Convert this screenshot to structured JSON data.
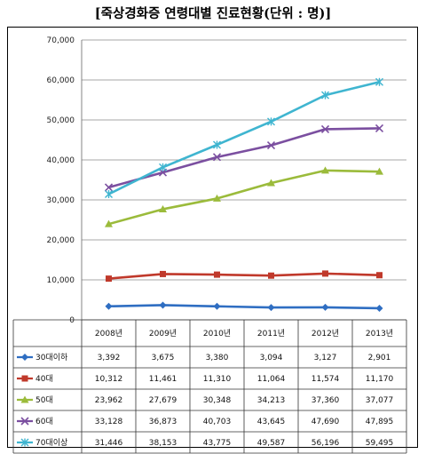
{
  "title": "[죽상경화증 연령대별 진료현황(단위 : 명)]",
  "chart_data": {
    "type": "line",
    "title": "[죽상경화증 연령대별 진료현황(단위 : 명)]",
    "categories": [
      "2008년",
      "2009년",
      "2010년",
      "2011년",
      "2012년",
      "2013년"
    ],
    "ylim": [
      0,
      70000
    ],
    "yticks": [
      "0",
      "10,000",
      "20,000",
      "30,000",
      "40,000",
      "50,000",
      "60,000",
      "70,000"
    ],
    "grid": true,
    "legend": "data-table",
    "series": [
      {
        "name": "30대이하",
        "color": "#2f6ec2",
        "marker": "diamond",
        "values": [
          3392,
          3675,
          3380,
          3094,
          3127,
          2901
        ],
        "labels": [
          "3,392",
          "3,675",
          "3,380",
          "3,094",
          "3,127",
          "2,901"
        ]
      },
      {
        "name": "40대",
        "color": "#c0392b",
        "marker": "square",
        "values": [
          10312,
          11461,
          11310,
          11064,
          11574,
          11170
        ],
        "labels": [
          "10,312",
          "11,461",
          "11,310",
          "11,064",
          "11,574",
          "11,170"
        ]
      },
      {
        "name": "50대",
        "color": "#9bbb3b",
        "marker": "triangle",
        "values": [
          23962,
          27679,
          30348,
          34213,
          37360,
          37077
        ],
        "labels": [
          "23,962",
          "27,679",
          "30,348",
          "34,213",
          "37,360",
          "37,077"
        ]
      },
      {
        "name": "60대",
        "color": "#7b4fa0",
        "marker": "x",
        "values": [
          33128,
          36873,
          40703,
          43645,
          47690,
          47895
        ],
        "labels": [
          "33,128",
          "36,873",
          "40,703",
          "43,645",
          "47,690",
          "47,895"
        ]
      },
      {
        "name": "70대이상",
        "color": "#3fb5d0",
        "marker": "star",
        "values": [
          31446,
          38153,
          43775,
          49587,
          56196,
          59495
        ],
        "labels": [
          "31,446",
          "38,153",
          "43,775",
          "49,587",
          "56,196",
          "59,495"
        ]
      }
    ]
  }
}
